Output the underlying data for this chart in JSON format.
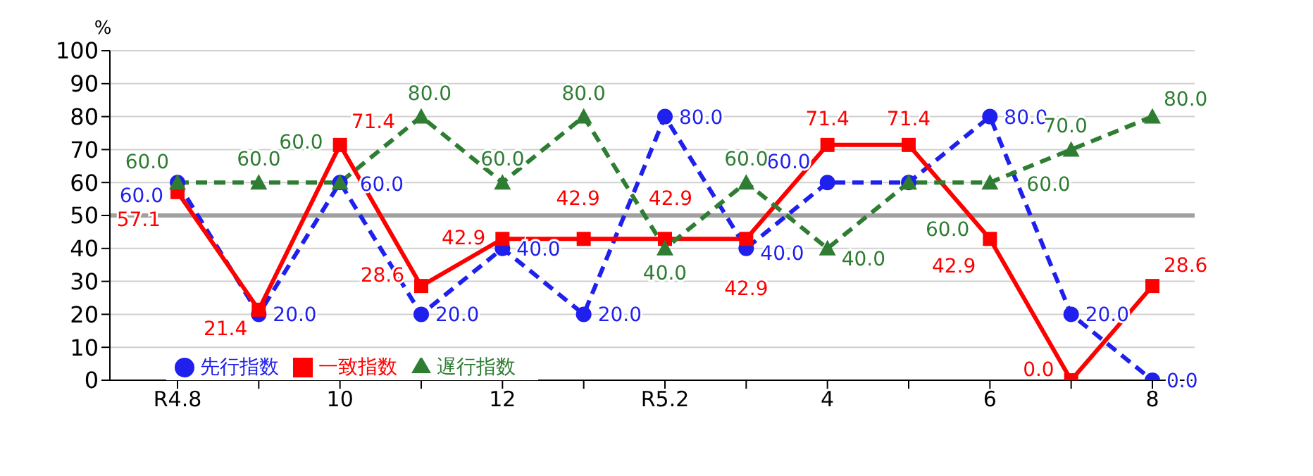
{
  "chart_data": {
    "type": "line",
    "ylabel": "%",
    "categories": [
      "R4.8",
      null,
      "10",
      null,
      "12",
      null,
      "R5.2",
      null,
      "4",
      null,
      "6",
      null,
      "8"
    ],
    "series": [
      {
        "name": "先行指数",
        "color": "#1f1fee",
        "line_style": "dashed",
        "marker": "circle",
        "values": [
          60,
          20,
          60,
          20,
          40,
          20,
          80,
          40,
          60,
          60,
          80,
          20,
          0
        ],
        "value_labels": [
          "60.0",
          "20.0",
          "60.0",
          "20.0",
          "40.0",
          "20.0",
          "80.0",
          "40.0",
          "60.0",
          null,
          "80.0",
          "20.0",
          "0.0"
        ]
      },
      {
        "name": "一致指数",
        "color": "#ff0000",
        "line_style": "solid",
        "marker": "square",
        "values": [
          57.1,
          21.4,
          71.4,
          28.6,
          42.9,
          42.9,
          42.9,
          42.9,
          71.4,
          71.4,
          42.9,
          0,
          28.6
        ],
        "value_labels": [
          "57.1",
          "21.4",
          "71.4",
          "28.6",
          "42.9",
          "42.9",
          "42.9",
          "42.9",
          "71.4",
          "71.4",
          "42.9",
          "0.0",
          "28.6"
        ]
      },
      {
        "name": "遅行指数",
        "color": "#2e7d32",
        "line_style": "dashed",
        "marker": "triangle",
        "values": [
          60,
          60,
          60,
          80,
          60,
          80,
          40,
          60,
          40,
          60,
          60,
          70,
          80
        ],
        "value_labels": [
          "60.0",
          "60.0",
          "60.0",
          "80.0",
          "60.0",
          "80.0",
          "40.0",
          "60.0",
          "40.0",
          "60.0",
          "60.0",
          "70.0",
          "80.0"
        ]
      }
    ],
    "ylim": [
      0,
      100
    ],
    "yticks": [
      0,
      10,
      20,
      30,
      40,
      50,
      60,
      70,
      80,
      90,
      100
    ],
    "grid": "y",
    "legend": "bottom left",
    "ref_lines": [
      {
        "axis": "y",
        "value": 50,
        "color": "#a0a0a0"
      }
    ]
  }
}
